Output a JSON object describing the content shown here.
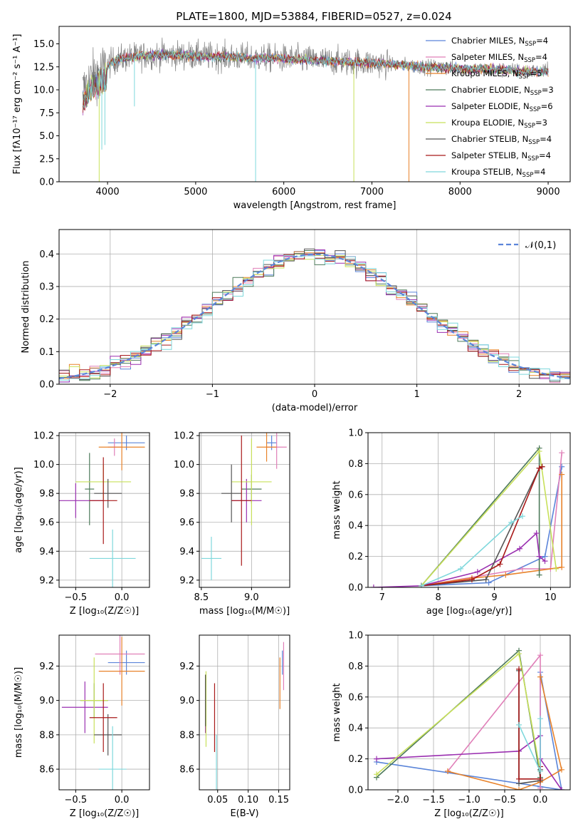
{
  "figure": {
    "title": "PLATE=1800, MJD=53884, FIBERID=0527, z=0.024"
  },
  "colors": {
    "chabrier_miles": "#5b85d9",
    "salpeter_miles": "#e07fb8",
    "kroupa_miles": "#e8822a",
    "chabrier_elodie": "#4d7a5a",
    "salpeter_elodie": "#9a2fb0",
    "kroupa_elodie": "#c8e05a",
    "chabrier_stelib": "#555555",
    "salpeter_stelib": "#a81919",
    "kroupa_stelib": "#7fd8dc",
    "data": "#808080"
  },
  "chart_data": [
    {
      "id": "spectrum",
      "type": "line",
      "title": "PLATE=1800, MJD=53884, FIBERID=0527, z=0.024",
      "xlabel": "wavelength [Angstrom, rest frame]",
      "ylabel": "Flux [f_λ 10^-17 erg cm^-2 s^-1 A^-1]",
      "xlim": [
        3450,
        9250
      ],
      "ylim": [
        0,
        16.9
      ],
      "xticks": [
        4000,
        5000,
        6000,
        7000,
        8000,
        9000
      ],
      "yticks": [
        0.0,
        2.5,
        5.0,
        7.5,
        10.0,
        12.5,
        15.0
      ],
      "grid": false,
      "legend_position": "top-right",
      "legend": [
        {
          "label": "Chabrier MILES, N_SSP=4",
          "key": "chabrier_miles"
        },
        {
          "label": "Salpeter MILES, N_SSP=4",
          "key": "salpeter_miles"
        },
        {
          "label": "Kroupa MILES, N_SSP=5",
          "key": "kroupa_miles"
        },
        {
          "label": "Chabrier ELODIE, N_SSP=3",
          "key": "chabrier_elodie"
        },
        {
          "label": "Salpeter ELODIE, N_SSP=6",
          "key": "salpeter_elodie"
        },
        {
          "label": "Kroupa ELODIE, N_SSP=3",
          "key": "kroupa_elodie"
        },
        {
          "label": "Chabrier STELIB, N_SSP=4",
          "key": "chabrier_stelib"
        },
        {
          "label": "Salpeter STELIB, N_SSP=4",
          "key": "salpeter_stelib"
        },
        {
          "label": "Kroupa STELIB, N_SSP=4",
          "key": "kroupa_stelib"
        }
      ],
      "continuum_x": [
        3720,
        3800,
        3900,
        4000,
        4100,
        4300,
        4500,
        4700,
        5000,
        5300,
        5600,
        6000,
        6400,
        6800,
        7200,
        7600,
        8000,
        8400,
        8800,
        9000
      ],
      "continuum_y": [
        10.0,
        11.2,
        12.0,
        12.7,
        13.3,
        13.6,
        13.8,
        13.8,
        13.7,
        13.6,
        13.5,
        13.4,
        13.2,
        13.0,
        12.8,
        12.5,
        12.3,
        12.2,
        12.0,
        12.0
      ],
      "dips": [
        {
          "x": 3905,
          "y": 0.0,
          "key": "kroupa_elodie"
        },
        {
          "x": 3935,
          "y": 3.5,
          "key": "kroupa_stelib"
        },
        {
          "x": 3970,
          "y": 4.0,
          "key": "kroupa_stelib"
        },
        {
          "x": 4305,
          "y": 8.2,
          "key": "kroupa_stelib"
        },
        {
          "x": 5680,
          "y": 0.0,
          "key": "kroupa_stelib"
        },
        {
          "x": 6795,
          "y": 0.0,
          "key": "kroupa_elodie"
        },
        {
          "x": 7420,
          "y": 0.0,
          "key": "kroupa_miles"
        }
      ]
    },
    {
      "id": "residuals",
      "type": "histogram",
      "xlabel": "(data-model)/error",
      "ylabel": "Normed distribution",
      "xlim": [
        -2.5,
        2.5
      ],
      "ylim": [
        0,
        0.475
      ],
      "xticks": [
        -2,
        -1,
        0,
        1,
        2
      ],
      "yticks": [
        0.0,
        0.1,
        0.2,
        0.3,
        0.4
      ],
      "grid": true,
      "legend_position": "top-right",
      "legend": [
        {
          "label": "𝒩(0,1)",
          "key": "chabrier_miles",
          "style": "dashed"
        }
      ],
      "bin_width": 0.1,
      "reference_curve": "normal(0,1)"
    },
    {
      "id": "age_vs_Z",
      "type": "errorbar",
      "xlabel": "Z [log₁₀(Z/Z☉)]",
      "ylabel": "age  [log₁₀(age/yr)]",
      "xlim": [
        -0.68,
        0.3
      ],
      "ylim": [
        9.15,
        10.22
      ],
      "xticks": [
        -0.5,
        0.0
      ],
      "yticks": [
        9.2,
        9.4,
        9.6,
        9.8,
        10.0,
        10.2
      ],
      "grid": true,
      "points": [
        {
          "key": "chabrier_miles",
          "x": 0.05,
          "xerr": 0.2,
          "y": 10.15,
          "yerr": 0.05
        },
        {
          "key": "salpeter_miles",
          "x": -0.08,
          "xerr": 0.07,
          "y": 10.12,
          "yerr": 0.06
        },
        {
          "key": "kroupa_miles",
          "x": 0.0,
          "xerr": 0.25,
          "y": 10.12,
          "yerr": 0.16
        },
        {
          "key": "chabrier_elodie",
          "x": -0.35,
          "xerr": 0.05,
          "y": 9.83,
          "yerr": 0.25
        },
        {
          "key": "salpeter_elodie",
          "x": -0.5,
          "xerr": 0.3,
          "y": 9.75,
          "yerr": 0.12
        },
        {
          "key": "kroupa_elodie",
          "x": -0.2,
          "xerr": 0.3,
          "y": 9.88,
          "yerr": 0.12
        },
        {
          "key": "chabrier_stelib",
          "x": -0.15,
          "xerr": 0.15,
          "y": 9.8,
          "yerr": 0.1
        },
        {
          "key": "salpeter_stelib",
          "x": -0.2,
          "xerr": 0.15,
          "y": 9.75,
          "yerr": 0.3
        },
        {
          "key": "kroupa_stelib",
          "x": -0.1,
          "xerr": 0.25,
          "y": 9.35,
          "yerr": 0.2
        }
      ]
    },
    {
      "id": "age_vs_mass",
      "type": "errorbar",
      "xlabel": "mass [log₁₀(M/M☉)]",
      "ylabel": "",
      "xlim": [
        8.48,
        9.38
      ],
      "ylim": [
        9.15,
        10.22
      ],
      "xticks": [
        8.5,
        9.0
      ],
      "yticks": [
        9.2,
        9.4,
        9.6,
        9.8,
        10.0,
        10.2
      ],
      "grid": true,
      "points": [
        {
          "key": "chabrier_miles",
          "x": 9.2,
          "xerr": 0.05,
          "y": 10.15,
          "yerr": 0.05
        },
        {
          "key": "salpeter_miles",
          "x": 9.25,
          "xerr": 0.1,
          "y": 10.12,
          "yerr": 0.15
        },
        {
          "key": "kroupa_miles",
          "x": 9.15,
          "xerr": 0.1,
          "y": 10.12,
          "yerr": 0.1
        },
        {
          "key": "chabrier_elodie",
          "x": 9.0,
          "xerr": 0.1,
          "y": 9.83,
          "yerr": 0.1
        },
        {
          "key": "salpeter_elodie",
          "x": 8.95,
          "xerr": 0.15,
          "y": 9.75,
          "yerr": 0.15
        },
        {
          "key": "kroupa_elodie",
          "x": 9.0,
          "xerr": 0.2,
          "y": 9.88,
          "yerr": 0.3
        },
        {
          "key": "chabrier_stelib",
          "x": 8.8,
          "xerr": 0.1,
          "y": 9.8,
          "yerr": 0.2
        },
        {
          "key": "salpeter_stelib",
          "x": 8.9,
          "xerr": 0.1,
          "y": 9.75,
          "yerr": 0.45
        },
        {
          "key": "kroupa_stelib",
          "x": 8.6,
          "xerr": 0.1,
          "y": 9.35,
          "yerr": 0.15
        }
      ]
    },
    {
      "id": "weight_vs_age",
      "type": "line",
      "xlabel": "age  [log₁₀(age/yr)]",
      "ylabel": "mass weight",
      "xlim": [
        6.75,
        10.35
      ],
      "ylim": [
        0,
        1.0
      ],
      "xticks": [
        7,
        8,
        9,
        10
      ],
      "yticks": [
        0.0,
        0.2,
        0.4,
        0.6,
        0.8,
        1.0
      ],
      "grid": true,
      "series": [
        {
          "key": "chabrier_miles",
          "x": [
            7.7,
            8.9,
            9.9,
            10.2
          ],
          "y": [
            0.01,
            0.03,
            0.2,
            0.78
          ]
        },
        {
          "key": "salpeter_miles",
          "x": [
            7.7,
            9.5,
            10.0,
            10.2
          ],
          "y": [
            0.01,
            0.12,
            0.12,
            0.87
          ]
        },
        {
          "key": "kroupa_miles",
          "x": [
            7.7,
            8.6,
            9.2,
            10.2,
            10.2
          ],
          "y": [
            0.01,
            0.06,
            0.08,
            0.13,
            0.73
          ]
        },
        {
          "key": "chabrier_elodie",
          "x": [
            7.7,
            9.8,
            9.8
          ],
          "y": [
            0.01,
            0.9,
            0.08
          ]
        },
        {
          "key": "salpeter_elodie",
          "x": [
            6.85,
            7.7,
            8.7,
            9.45,
            9.75,
            9.8,
            9.9
          ],
          "y": [
            0.0,
            0.01,
            0.1,
            0.25,
            0.35,
            0.2,
            0.17
          ]
        },
        {
          "key": "kroupa_elodie",
          "x": [
            7.7,
            9.8,
            10.1
          ],
          "y": [
            0.01,
            0.88,
            0.12
          ]
        },
        {
          "key": "chabrier_stelib",
          "x": [
            7.7,
            8.85,
            9.8,
            9.85
          ],
          "y": [
            0.01,
            0.05,
            0.77,
            0.78
          ]
        },
        {
          "key": "salpeter_stelib",
          "x": [
            7.7,
            8.6,
            9.1,
            9.8,
            9.85
          ],
          "y": [
            0.01,
            0.05,
            0.15,
            0.77,
            0.78
          ]
        },
        {
          "key": "kroupa_stelib",
          "x": [
            7.7,
            8.4,
            9.3,
            9.5
          ],
          "y": [
            0.01,
            0.12,
            0.42,
            0.46
          ]
        }
      ]
    },
    {
      "id": "mass_vs_Z",
      "type": "errorbar",
      "xlabel": "Z [log₁₀(Z/Z☉)]",
      "ylabel": "mass [log₁₀(M/M☉)]",
      "xlim": [
        -0.68,
        0.3
      ],
      "ylim": [
        8.48,
        9.38
      ],
      "xticks": [
        -0.5,
        0.0
      ],
      "yticks": [
        8.6,
        8.8,
        9.0,
        9.2
      ],
      "grid": true,
      "points": [
        {
          "key": "chabrier_miles",
          "x": 0.05,
          "xerr": 0.2,
          "y": 9.22,
          "yerr": 0.07
        },
        {
          "key": "salpeter_miles",
          "x": -0.02,
          "xerr": 0.27,
          "y": 9.27,
          "yerr": 0.12
        },
        {
          "key": "kroupa_miles",
          "x": 0.0,
          "xerr": 0.25,
          "y": 9.17,
          "yerr": 0.2
        },
        {
          "key": "chabrier_elodie",
          "x": -0.3,
          "xerr": 0.15,
          "y": 9.0,
          "yerr": 0.1
        },
        {
          "key": "salpeter_elodie",
          "x": -0.4,
          "xerr": 0.25,
          "y": 8.96,
          "yerr": 0.15
        },
        {
          "key": "kroupa_elodie",
          "x": -0.3,
          "xerr": 0.15,
          "y": 9.0,
          "yerr": 0.25
        },
        {
          "key": "chabrier_stelib",
          "x": -0.15,
          "xerr": 0.15,
          "y": 8.8,
          "yerr": 0.12
        },
        {
          "key": "salpeter_stelib",
          "x": -0.2,
          "xerr": 0.15,
          "y": 8.9,
          "yerr": 0.2
        },
        {
          "key": "kroupa_stelib",
          "x": -0.1,
          "xerr": 0.15,
          "y": 8.6,
          "yerr": 0.25
        }
      ]
    },
    {
      "id": "mass_vs_ebv",
      "type": "errorbar",
      "xlabel": "E(B-V)",
      "ylabel": "",
      "xlim": [
        0.02,
        0.168
      ],
      "ylim": [
        8.48,
        9.38
      ],
      "xticks": [
        0.05,
        0.1,
        0.15
      ],
      "xtick_labels": [
        "0.05",
        "0.10",
        "0.15"
      ],
      "yticks": [
        8.6,
        8.8,
        9.0,
        9.2
      ],
      "grid": true,
      "points": [
        {
          "key": "chabrier_miles",
          "x": 0.156,
          "xerr": 0.0,
          "y": 9.22,
          "yerr": 0.07
        },
        {
          "key": "salpeter_miles",
          "x": 0.158,
          "xerr": 0.0,
          "y": 9.2,
          "yerr": 0.14
        },
        {
          "key": "kroupa_miles",
          "x": 0.152,
          "xerr": 0.0,
          "y": 9.1,
          "yerr": 0.15
        },
        {
          "key": "chabrier_elodie",
          "x": 0.031,
          "xerr": 0.0,
          "y": 9.0,
          "yerr": 0.15
        },
        {
          "key": "salpeter_elodie",
          "x": 0.03,
          "xerr": 0.0,
          "y": 8.96,
          "yerr": 0.15
        },
        {
          "key": "kroupa_elodie",
          "x": 0.031,
          "xerr": 0.0,
          "y": 8.95,
          "yerr": 0.22
        },
        {
          "key": "chabrier_stelib",
          "x": 0.03,
          "xerr": 0.0,
          "y": 9.0,
          "yerr": 0.15
        },
        {
          "key": "salpeter_stelib",
          "x": 0.045,
          "xerr": 0.0,
          "y": 8.9,
          "yerr": 0.2
        },
        {
          "key": "kroupa_stelib",
          "x": 0.048,
          "xerr": 0.0,
          "y": 8.6,
          "yerr": 0.2
        }
      ]
    },
    {
      "id": "weight_vs_Z",
      "type": "line",
      "xlabel": "Z [log₁₀(Z/Z☉)]",
      "ylabel": "mass weight",
      "xlim": [
        -2.42,
        0.42
      ],
      "ylim": [
        0,
        1.0
      ],
      "xticks": [
        -2.0,
        -1.5,
        -1.0,
        -0.5,
        0.0
      ],
      "yticks": [
        0.0,
        0.2,
        0.4,
        0.6,
        0.8,
        1.0
      ],
      "grid": true,
      "series": [
        {
          "key": "chabrier_miles",
          "x": [
            -2.3,
            0.3,
            0.0,
            0.0
          ],
          "y": [
            0.18,
            0.0,
            0.76,
            0.02
          ]
        },
        {
          "key": "salpeter_miles",
          "x": [
            -1.3,
            0.0,
            0.0
          ],
          "y": [
            0.12,
            0.87,
            0.01
          ]
        },
        {
          "key": "kroupa_miles",
          "x": [
            -1.3,
            -0.3,
            0.0,
            0.3,
            0.0
          ],
          "y": [
            0.12,
            0.0,
            0.05,
            0.13,
            0.73
          ]
        },
        {
          "key": "chabrier_elodie",
          "x": [
            -2.3,
            -0.3,
            0.0
          ],
          "y": [
            0.08,
            0.9,
            0.08
          ]
        },
        {
          "key": "salpeter_elodie",
          "x": [
            -2.3,
            -0.3,
            0.0,
            0.0,
            0.3
          ],
          "y": [
            0.2,
            0.25,
            0.35,
            0.2,
            0.0
          ]
        },
        {
          "key": "kroupa_elodie",
          "x": [
            -2.3,
            -0.3,
            0.0
          ],
          "y": [
            0.1,
            0.88,
            0.12
          ]
        },
        {
          "key": "chabrier_stelib",
          "x": [
            -0.3,
            -0.3,
            0.0,
            0.0
          ],
          "y": [
            0.77,
            0.04,
            0.06,
            0.13
          ]
        },
        {
          "key": "salpeter_stelib",
          "x": [
            -0.3,
            -0.3,
            0.0,
            0.0
          ],
          "y": [
            0.78,
            0.07,
            0.07,
            0.15
          ]
        },
        {
          "key": "kroupa_stelib",
          "x": [
            -0.3,
            0.0,
            0.0
          ],
          "y": [
            0.42,
            0.12,
            0.46
          ]
        }
      ]
    }
  ]
}
